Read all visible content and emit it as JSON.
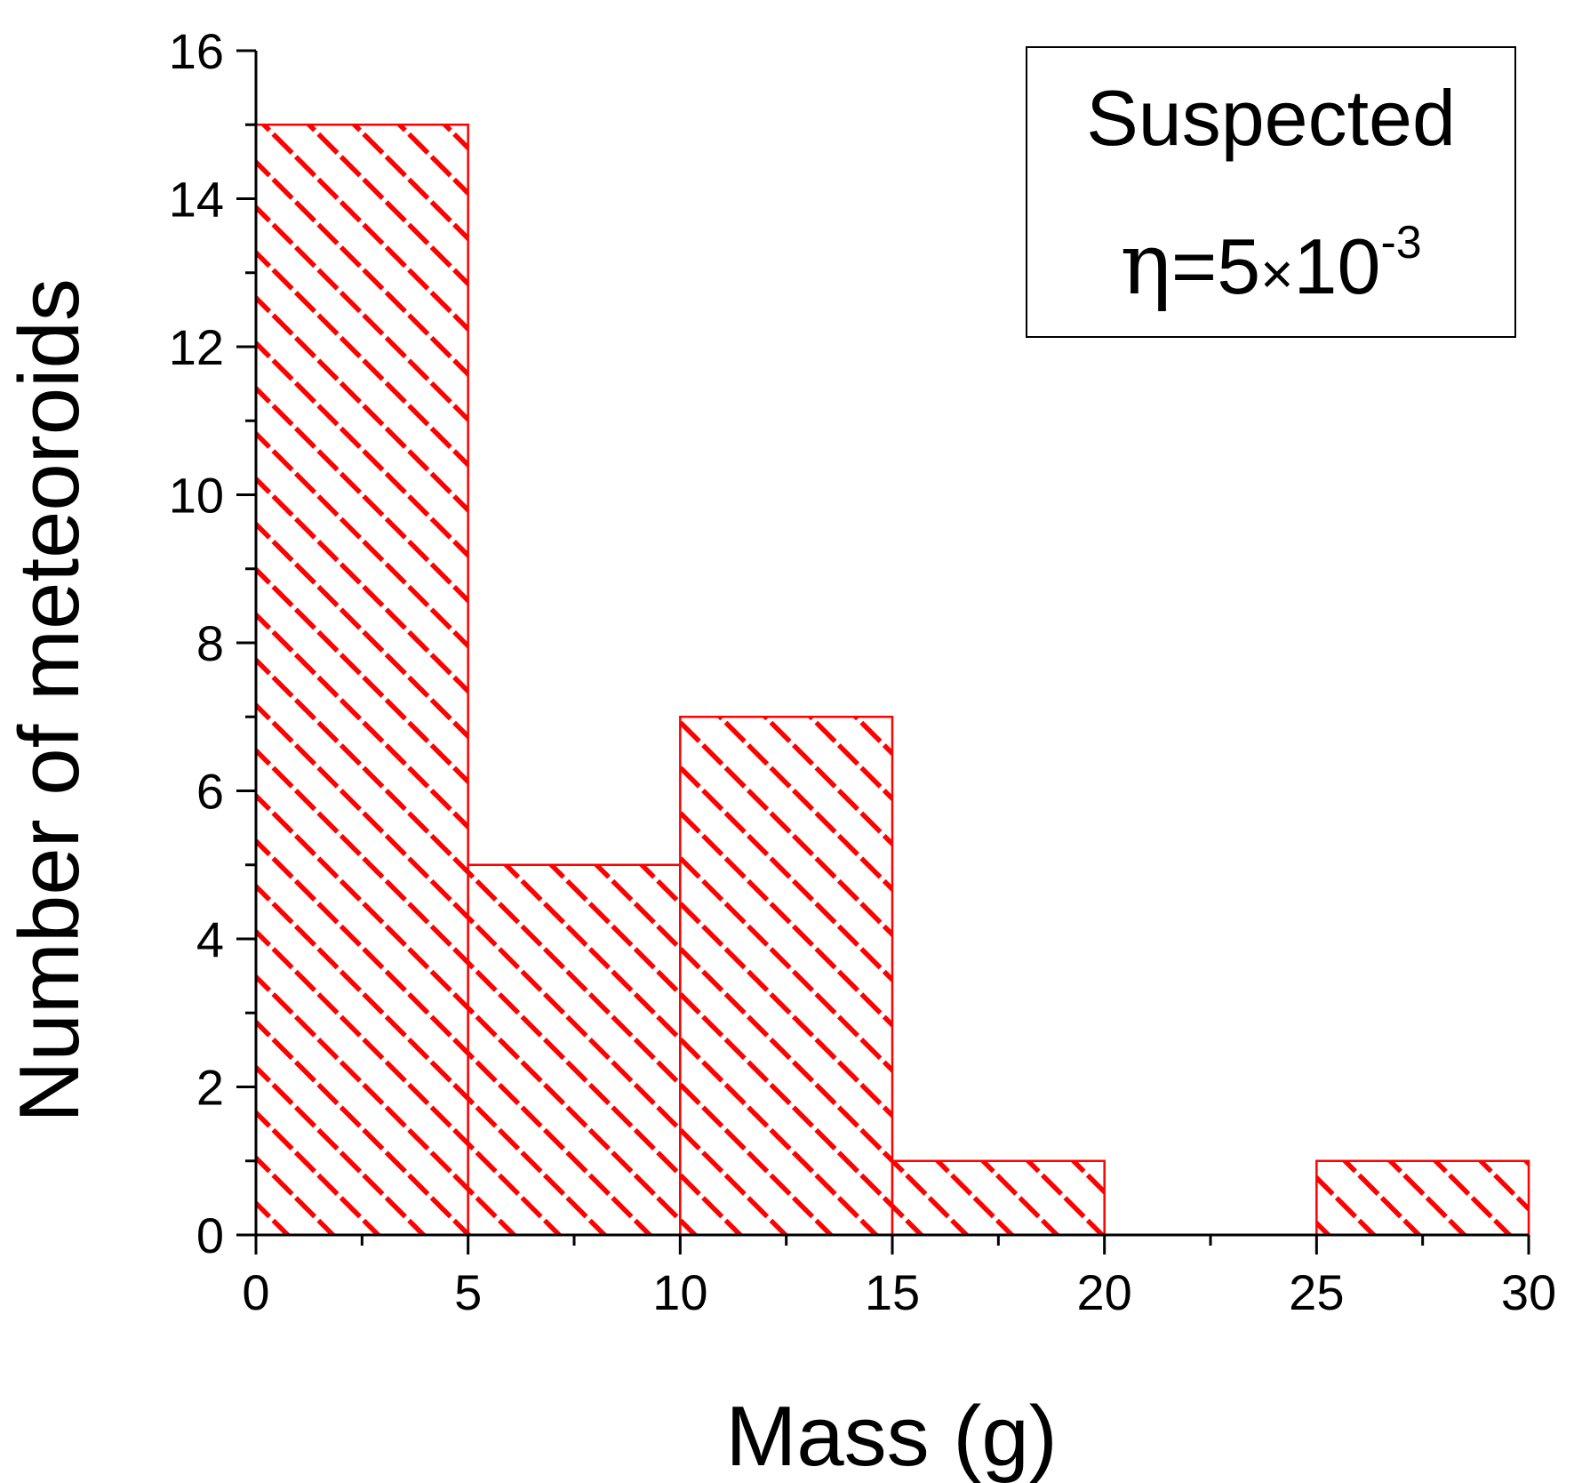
{
  "chart_data": {
    "type": "bar",
    "subtype": "histogram",
    "bin_edges": [
      0,
      5,
      10,
      15,
      20,
      25,
      30
    ],
    "categories": [
      "0-5",
      "5-10",
      "10-15",
      "15-20",
      "20-25",
      "25-30"
    ],
    "values": [
      15,
      5,
      7,
      1,
      0,
      1
    ],
    "title": "",
    "xlabel": "Mass (g)",
    "ylabel": "Number of meteoroids",
    "xlim": [
      0,
      30
    ],
    "ylim": [
      0,
      16
    ],
    "x_ticks": [
      "0",
      "5",
      "10",
      "15",
      "20",
      "25",
      "30"
    ],
    "y_ticks": [
      "0",
      "2",
      "4",
      "6",
      "8",
      "10",
      "12",
      "14",
      "16"
    ],
    "grid": false,
    "bar_fill": "diagonal-hatch",
    "bar_color": "#ff0000",
    "legend": {
      "placement": "top-right",
      "line1": "Suspected",
      "eta_symbol": "η",
      "eta_mantissa": "=5",
      "eta_times": "×",
      "eta_base": "10",
      "eta_exponent": "-3"
    }
  }
}
